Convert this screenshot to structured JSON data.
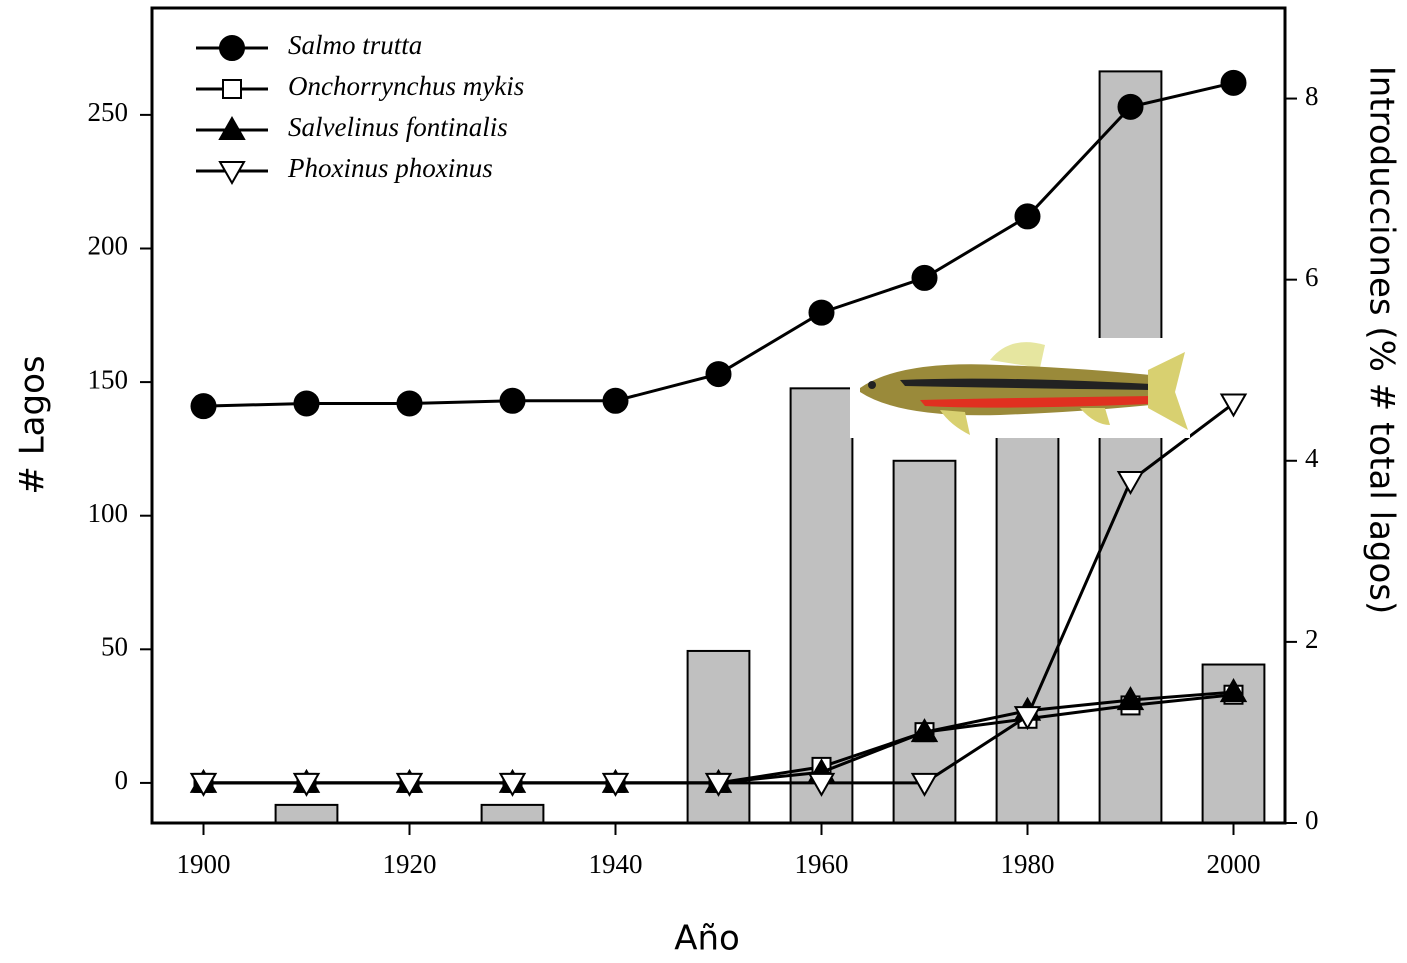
{
  "chart_data": {
    "type": "combo",
    "x_label": "Año",
    "y_label": "# Lagos",
    "y2_label": "Introducciones (% # total lagos)",
    "x": [
      1900,
      1910,
      1920,
      1930,
      1940,
      1950,
      1960,
      1970,
      1980,
      1990,
      2000
    ],
    "xlim": [
      1895,
      2005
    ],
    "xticks": [
      1900,
      1920,
      1940,
      1960,
      1980,
      2000
    ],
    "ylim": [
      -15,
      290
    ],
    "yticks": [
      0,
      50,
      100,
      150,
      200,
      250
    ],
    "y2lim": [
      0,
      9
    ],
    "y2ticks": [
      0,
      2,
      4,
      6,
      8
    ],
    "legend": "upper left",
    "bars": {
      "axis": "y2",
      "color": "#c0c0c0",
      "values": [
        0,
        0.2,
        0,
        0.2,
        0,
        1.9,
        4.8,
        4.0,
        5.0,
        8.3,
        1.75
      ]
    },
    "series": [
      {
        "name": "Salmo trutta",
        "marker": "circle",
        "color": "#000000",
        "values": [
          141,
          142,
          142,
          143,
          143,
          153,
          176,
          189,
          212,
          253,
          262
        ]
      },
      {
        "name": "Onchorrynchus mykis",
        "marker": "square",
        "color": "#ffffff",
        "values": [
          0,
          0,
          0,
          0,
          0,
          0,
          6,
          19,
          24,
          29,
          33
        ]
      },
      {
        "name": "Salvelinus fontinalis",
        "marker": "triangle",
        "color": "#000000",
        "values": [
          0,
          0,
          0,
          0,
          0,
          0,
          4,
          19,
          27,
          31,
          34
        ]
      },
      {
        "name": "Phoxinus phoxinus",
        "marker": "triangle-down",
        "color": "#ffffff",
        "values": [
          0,
          0,
          0,
          0,
          0,
          0,
          0,
          0,
          25,
          113,
          142
        ]
      }
    ]
  }
}
